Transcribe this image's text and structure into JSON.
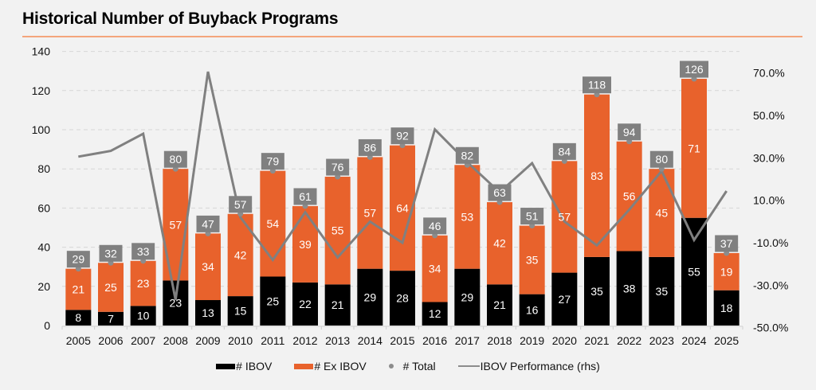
{
  "page": {
    "title": "Historical Number of Buyback Programs"
  },
  "colors": {
    "ibov": "#000000",
    "ex_ibov": "#e8622c",
    "total_label": "#808080",
    "line": "#808080",
    "title_rule": "#f4a57c",
    "grid": "#d6d6d6"
  },
  "chart_data": {
    "type": "bar",
    "stacked": true,
    "title": "Historical Number of Buyback Programs",
    "xlabel": "",
    "ylabel": "",
    "categories": [
      "2005",
      "2006",
      "2007",
      "2008",
      "2009",
      "2010",
      "2011",
      "2012",
      "2013",
      "2014",
      "2015",
      "2016",
      "2017",
      "2018",
      "2019",
      "2020",
      "2021",
      "2022",
      "2023",
      "2024",
      "2025"
    ],
    "series": [
      {
        "name": "# IBOV",
        "type": "bar",
        "axis": "left",
        "values": [
          8,
          7,
          10,
          23,
          13,
          15,
          25,
          22,
          21,
          29,
          28,
          12,
          29,
          21,
          16,
          27,
          35,
          38,
          35,
          55,
          18
        ]
      },
      {
        "name": "# Ex IBOV",
        "type": "bar",
        "axis": "left",
        "values": [
          21,
          25,
          23,
          57,
          34,
          42,
          54,
          39,
          55,
          57,
          64,
          34,
          53,
          42,
          35,
          57,
          83,
          56,
          45,
          71,
          19
        ]
      },
      {
        "name": "# Total",
        "type": "scatter",
        "axis": "left",
        "values": [
          29,
          32,
          33,
          80,
          47,
          57,
          79,
          61,
          76,
          86,
          92,
          46,
          82,
          63,
          51,
          84,
          118,
          94,
          80,
          126,
          37
        ]
      },
      {
        "name": "IBOV Performance (rhs)",
        "type": "line",
        "axis": "right",
        "unit": "%",
        "values": [
          30.6,
          33.3,
          41.4,
          -36.9,
          70.6,
          2.0,
          -18.1,
          4.4,
          -16.9,
          0.0,
          -10.0,
          43.4,
          28.0,
          13.8,
          27.5,
          0.0,
          -11.2,
          5.6,
          23.8,
          -8.7,
          14.4
        ]
      }
    ],
    "y_left": {
      "min": 0,
      "max": 140,
      "ticks": [
        0,
        20,
        40,
        60,
        80,
        100,
        120,
        140
      ],
      "tick_labels": [
        "0",
        "20",
        "40",
        "60",
        "80",
        "100",
        "120",
        "140"
      ]
    },
    "y_right": {
      "min": -50,
      "max": 70,
      "ticks": [
        -50,
        -30,
        -10,
        10,
        30,
        50,
        70
      ],
      "tick_labels": [
        "-50.0%",
        "-30.0%",
        "-10.0%",
        "10.0%",
        "30.0%",
        "50.0%",
        "70.0%"
      ]
    },
    "grid": true,
    "legend": {
      "position": "bottom",
      "entries": [
        "# IBOV",
        "# Ex IBOV",
        "# Total",
        "IBOV Performance (rhs)"
      ]
    }
  }
}
